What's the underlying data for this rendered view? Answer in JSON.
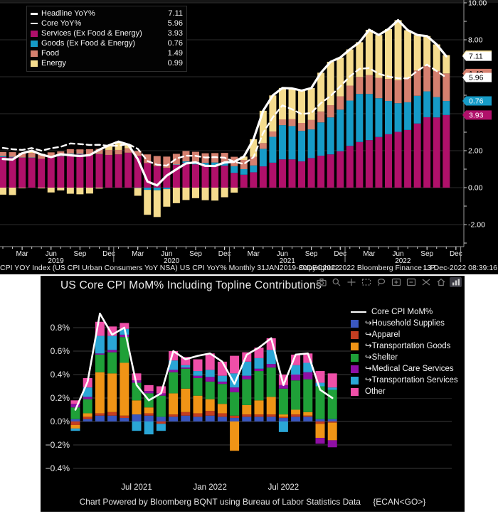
{
  "colors": {
    "background": "#000000",
    "page": "#ffffff",
    "grid_top": "#2b2b2b",
    "grid_bottom": "#3a3a3a",
    "axis_text": "#f0f0f0",
    "services": "#b0106a",
    "goods": "#169bc7",
    "food": "#d5806f",
    "energy": "#f5dc8e",
    "line_white": "#ffffff",
    "household": "#3a57c0",
    "apparel": "#c43d21",
    "transportation_goods": "#f09416",
    "shelter": "#1fa038",
    "medical": "#8f0fa5",
    "transportation_services": "#2aa6d6",
    "other": "#ef4fa8"
  },
  "top_chart": {
    "legend": [
      {
        "label": "Headline YoY%",
        "value": "7.11",
        "swatch": "line",
        "color": "#ffffff"
      },
      {
        "label": "Core YoY%",
        "value": "5.96",
        "swatch": "dashed",
        "color": "#ffffff"
      },
      {
        "label": "Services (Ex Food & Energy)",
        "value": "3.93",
        "swatch": "box",
        "color": "#b0106a"
      },
      {
        "label": "Goods (Ex Food & Energy)",
        "value": "0.76",
        "swatch": "box",
        "color": "#169bc7"
      },
      {
        "label": "Food",
        "value": "1.49",
        "swatch": "box",
        "color": "#d5806f"
      },
      {
        "label": "Energy",
        "value": "0.99",
        "swatch": "box",
        "color": "#f5dc8e"
      }
    ],
    "right_axis_labels": [
      {
        "text": "10.00",
        "value": 10
      },
      {
        "text": "8.00",
        "value": 8
      },
      {
        "text": "2.00",
        "value": 2
      },
      {
        "text": "0.00",
        "value": 0
      },
      {
        "text": "-2.00",
        "value": -2
      }
    ],
    "badges": [
      {
        "text": "0.99",
        "value": 7.17,
        "bg": "#f5dc8e",
        "fg": "#000000"
      },
      {
        "text": "1.49",
        "value": 6.18,
        "bg": "#d5806f",
        "fg": "#000000"
      },
      {
        "text": "7.11",
        "value": 7.11,
        "bg": "#ffffff",
        "fg": "#000000"
      },
      {
        "text": "5.96",
        "value": 5.96,
        "bg": "#ffffff",
        "fg": "#000000"
      },
      {
        "text": "0.76",
        "value": 4.69,
        "bg": "#169bc7",
        "fg": "#ffffff"
      },
      {
        "text": "3.93",
        "value": 3.93,
        "bg": "#b0106a",
        "fg": "#ffffff"
      }
    ],
    "x_axis": {
      "month_tick_labels": [
        "Mar",
        "Jun",
        "Sep",
        "Dec",
        "Mar",
        "Jun",
        "Sep",
        "Dec",
        "Mar",
        "Jun",
        "Sep",
        "Dec",
        "Mar",
        "Jun",
        "Sep",
        "Dec"
      ],
      "month_tick_indices": [
        2,
        5,
        8,
        11,
        14,
        17,
        20,
        23,
        26,
        29,
        32,
        35,
        38,
        41,
        44,
        47
      ],
      "years": [
        {
          "label": "2019",
          "center_month": 5.5
        },
        {
          "label": "2020",
          "center_month": 17.5
        },
        {
          "label": "2021",
          "center_month": 29.5
        },
        {
          "label": "2022",
          "center_month": 41.5
        }
      ],
      "year_separator_months": [
        11.5,
        23.5,
        35.5,
        47.5
      ]
    },
    "caption": {
      "left": "CPI YOY Index (US CPI Urban Consumers YoY NSA) US CPI YoY%  Monthly 31JAN2019-30DEC2022",
      "center": "Copyright© 2022 Bloomberg Finance L.P.",
      "right": "13-Dec-2022 08:39:16"
    },
    "chart_data": {
      "type": "bar",
      "subtype": "stacked-with-lines",
      "x_start": "Jan 2019",
      "x_end": "Nov 2022",
      "points": 47,
      "ylim": [
        -3.2,
        10.0
      ],
      "y_gridlines": [
        -2,
        0,
        2,
        4,
        6,
        8,
        10
      ],
      "series": [
        {
          "name": "Services (Ex Food & Energy)",
          "color": "#b0106a",
          "values": [
            1.66,
            1.64,
            1.62,
            1.61,
            1.56,
            1.64,
            1.69,
            1.8,
            1.8,
            1.78,
            1.81,
            1.77,
            1.8,
            1.89,
            1.72,
            1.33,
            1.16,
            1.07,
            1.23,
            1.34,
            1.26,
            1.18,
            1.18,
            1.19,
            0.8,
            0.7,
            0.83,
            1.15,
            1.35,
            1.53,
            1.53,
            1.42,
            1.6,
            1.73,
            1.8,
            1.97,
            2.26,
            2.47,
            2.57,
            2.74,
            2.89,
            3.02,
            3.12,
            3.47,
            3.81,
            3.8,
            3.93
          ]
        },
        {
          "name": "Goods (Ex Food & Energy)",
          "color": "#169bc7",
          "values": [
            0.05,
            0.03,
            0.01,
            0.02,
            0.0,
            0.01,
            0.02,
            0.04,
            0.03,
            0.02,
            0.01,
            0.0,
            0.0,
            0.0,
            -0.02,
            -0.12,
            -0.14,
            -0.08,
            0.02,
            0.08,
            0.14,
            0.16,
            0.18,
            0.17,
            0.36,
            0.3,
            0.37,
            0.95,
            1.4,
            1.85,
            1.8,
            1.65,
            1.55,
            1.8,
            2.0,
            2.25,
            2.45,
            2.6,
            2.5,
            2.1,
            1.8,
            1.55,
            1.5,
            1.5,
            1.4,
            1.1,
            0.76
          ]
        },
        {
          "name": "Food",
          "color": "#d5806f",
          "values": [
            0.22,
            0.25,
            0.26,
            0.25,
            0.27,
            0.26,
            0.25,
            0.24,
            0.24,
            0.28,
            0.28,
            0.27,
            0.24,
            0.24,
            0.26,
            0.47,
            0.55,
            0.61,
            0.58,
            0.56,
            0.54,
            0.52,
            0.51,
            0.52,
            0.51,
            0.5,
            0.47,
            0.31,
            0.29,
            0.31,
            0.38,
            0.43,
            0.51,
            0.59,
            0.66,
            0.72,
            0.81,
            0.92,
            1.02,
            1.1,
            1.19,
            1.24,
            1.3,
            1.37,
            1.37,
            1.41,
            1.49
          ]
        },
        {
          "name": "Energy",
          "color": "#f5dc8e",
          "values": [
            -0.38,
            -0.4,
            -0.03,
            0.12,
            -0.04,
            -0.26,
            -0.15,
            -0.33,
            -0.36,
            -0.32,
            -0.05,
            0.25,
            0.45,
            0.2,
            -0.42,
            -1.35,
            -1.45,
            -0.95,
            -0.84,
            -0.67,
            -0.57,
            -0.68,
            -0.7,
            -0.52,
            -0.27,
            0.18,
            0.95,
            1.75,
            1.95,
            1.7,
            1.66,
            1.75,
            1.73,
            2.1,
            2.35,
            2.1,
            1.96,
            1.88,
            2.45,
            2.32,
            2.7,
            3.25,
            2.6,
            1.92,
            1.62,
            1.44,
            0.99
          ]
        }
      ],
      "lines": [
        {
          "name": "Core YoY%",
          "style": "dashed",
          "color": "#ffffff",
          "values": [
            2.15,
            2.08,
            2.04,
            2.14,
            2.0,
            2.13,
            2.21,
            2.39,
            2.36,
            2.31,
            2.32,
            2.26,
            2.27,
            2.36,
            2.1,
            1.44,
            1.24,
            1.19,
            1.57,
            1.73,
            1.72,
            1.63,
            1.65,
            1.62,
            1.4,
            1.28,
            1.65,
            2.96,
            3.8,
            4.45,
            4.24,
            3.98,
            4.04,
            4.58,
            4.96,
            5.48,
            6.02,
            6.43,
            6.47,
            6.16,
            6.01,
            5.92,
            5.91,
            6.32,
            6.66,
            6.31,
            5.96
          ]
        },
        {
          "name": "Headline YoY%",
          "style": "solid",
          "color": "#ffffff",
          "values": [
            1.55,
            1.52,
            1.86,
            2.0,
            1.79,
            1.65,
            1.81,
            1.75,
            1.71,
            1.76,
            2.05,
            2.29,
            2.49,
            2.33,
            1.54,
            0.33,
            0.12,
            0.65,
            0.99,
            1.31,
            1.37,
            1.18,
            1.17,
            1.36,
            1.4,
            1.68,
            2.62,
            4.16,
            4.99,
            5.39,
            5.37,
            5.25,
            5.39,
            6.22,
            6.81,
            7.04,
            7.48,
            7.87,
            8.54,
            8.26,
            8.58,
            9.06,
            8.52,
            8.26,
            8.2,
            7.75,
            7.11
          ]
        }
      ]
    }
  },
  "bottom_chart": {
    "title": "US Core CPI MoM% Including Topline Contributions",
    "toolbar": [
      "camera",
      "zoom",
      "pan",
      "box-select",
      "lasso-select",
      "zoom-in",
      "zoom-out",
      "autoscale",
      "home",
      "chart-logo"
    ],
    "legend": [
      {
        "label": "Core CPI MoM%",
        "swatch": "line",
        "color": "#ffffff"
      },
      {
        "label": "↪Household Supplies",
        "swatch": "box",
        "color": "#3a57c0"
      },
      {
        "label": "↪Apparel",
        "swatch": "box",
        "color": "#c43d21"
      },
      {
        "label": "↪Transportation Goods",
        "swatch": "box",
        "color": "#f09416"
      },
      {
        "label": "↪Shelter",
        "swatch": "box",
        "color": "#1fa038"
      },
      {
        "label": "↪Medical Care Services",
        "swatch": "box",
        "color": "#8f0fa5"
      },
      {
        "label": "↪Transportation Services",
        "swatch": "box",
        "color": "#2aa6d6"
      },
      {
        "label": "Other",
        "swatch": "box",
        "color": "#ef4fa8"
      }
    ],
    "y_ticks": [
      {
        "label": "0.8%",
        "value": 0.8
      },
      {
        "label": "0.6%",
        "value": 0.6
      },
      {
        "label": "0.4%",
        "value": 0.4
      },
      {
        "label": "0.2%",
        "value": 0.2
      },
      {
        "label": "0.0%",
        "value": 0.0
      },
      {
        "label": "−0.2%",
        "value": -0.2
      },
      {
        "label": "−0.4%",
        "value": -0.4
      }
    ],
    "x_ticks": [
      {
        "label": "Jul 2021",
        "index": 5
      },
      {
        "label": "Jan 2022",
        "index": 11
      },
      {
        "label": "Jul 2022",
        "index": 17
      }
    ],
    "footer": "Chart Powered by Bloomberg BQNT using Bureau of Labor Statistics Data",
    "footer_code": "{ECAN<GO>}",
    "chart_data": {
      "type": "bar",
      "subtype": "stacked-with-line",
      "x_start": "Feb 2021",
      "x_end": "Nov 2022",
      "points": 22,
      "ylim": [
        -0.52,
        0.95
      ],
      "y_gridlines": [
        0.8,
        0.6,
        0.4,
        0.2,
        0.0,
        -0.2,
        -0.4
      ],
      "series": [
        {
          "name": "↪Household Supplies",
          "color": "#3a57c0",
          "values": [
            0.02,
            0.02,
            0.05,
            0.05,
            0.03,
            0.06,
            0.05,
            0.04,
            0.04,
            0.05,
            0.04,
            0.05,
            0.04,
            0.03,
            0.04,
            0.04,
            0.04,
            0.03,
            0.04,
            0.04,
            0.02,
            0.02
          ]
        },
        {
          "name": "↪Apparel",
          "color": "#c43d21",
          "values": [
            -0.03,
            0.02,
            0.02,
            0.03,
            0.02,
            0.0,
            0.02,
            -0.02,
            0.02,
            0.03,
            0.03,
            0.04,
            0.03,
            0.02,
            0.02,
            0.02,
            0.02,
            0.01,
            0.02,
            0.01,
            -0.02,
            -0.01
          ]
        },
        {
          "name": "↪Transportation Goods",
          "color": "#f09416",
          "values": [
            -0.03,
            0.03,
            0.35,
            0.33,
            0.45,
            0.12,
            0.05,
            0.0,
            0.18,
            0.2,
            0.15,
            0.1,
            0.08,
            -0.25,
            0.08,
            0.12,
            0.15,
            0.02,
            0.04,
            0.03,
            -0.12,
            -0.15
          ]
        },
        {
          "name": "↪Shelter",
          "color": "#1fa038",
          "values": [
            0.1,
            0.12,
            0.15,
            0.18,
            0.22,
            0.15,
            0.12,
            0.18,
            0.18,
            0.17,
            0.15,
            0.15,
            0.17,
            0.2,
            0.22,
            0.25,
            0.25,
            0.22,
            0.25,
            0.28,
            0.28,
            0.25
          ]
        },
        {
          "name": "↪Medical Care Services",
          "color": "#8f0fa5",
          "values": [
            0.03,
            0.02,
            0.01,
            0.02,
            0.02,
            0.02,
            0.02,
            0.02,
            0.02,
            0.01,
            0.02,
            0.04,
            0.02,
            0.04,
            0.03,
            0.02,
            0.03,
            0.03,
            0.05,
            0.06,
            -0.05,
            -0.06
          ]
        },
        {
          "name": "↪Transportation Services",
          "color": "#2aa6d6",
          "values": [
            -0.02,
            0.08,
            0.15,
            0.12,
            0.05,
            -0.08,
            -0.11,
            -0.06,
            0.08,
            0.02,
            0.04,
            0.06,
            0.05,
            0.12,
            0.12,
            0.09,
            0.12,
            -0.09,
            0.08,
            0.08,
            0.03,
            0.02
          ]
        },
        {
          "name": "Other",
          "color": "#ef4fa8",
          "values": [
            0.03,
            0.08,
            0.12,
            0.08,
            0.05,
            0.06,
            0.05,
            0.06,
            0.08,
            0.07,
            0.1,
            0.14,
            0.12,
            0.15,
            0.08,
            0.09,
            0.1,
            0.09,
            0.09,
            0.08,
            0.1,
            0.12
          ]
        }
      ],
      "line": {
        "name": "Core CPI MoM%",
        "color": "#ffffff",
        "values": [
          0.1,
          0.34,
          0.92,
          0.74,
          0.8,
          0.31,
          0.18,
          0.24,
          0.6,
          0.53,
          0.56,
          0.58,
          0.51,
          0.32,
          0.57,
          0.63,
          0.71,
          0.31,
          0.57,
          0.58,
          0.27,
          0.2
        ]
      }
    }
  }
}
